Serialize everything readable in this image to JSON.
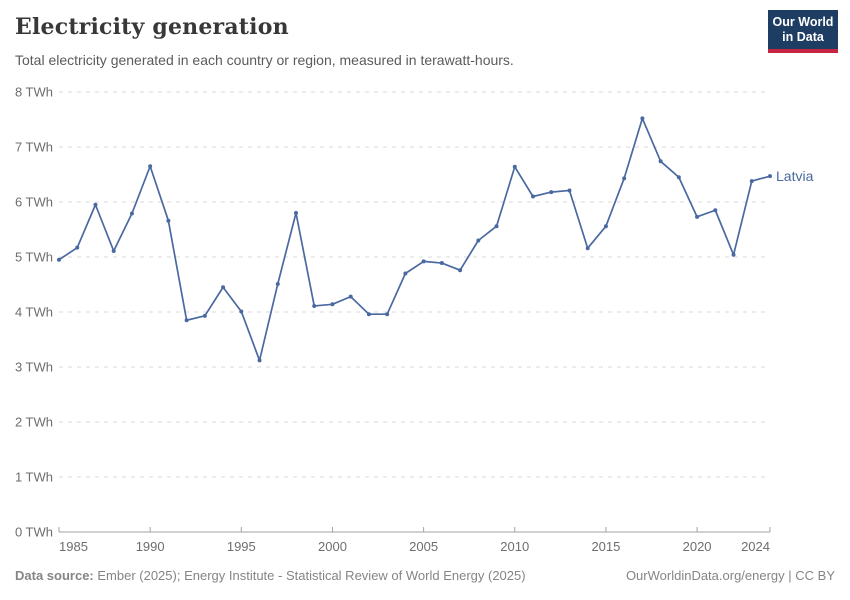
{
  "header": {
    "title": "Electricity generation",
    "subtitle": "Total electricity generated in each country or region, measured in terawatt-hours."
  },
  "logo": {
    "line1": "Our World",
    "line2": "in Data"
  },
  "colors": {
    "series_blue": "#4a69a0",
    "logo_bg": "#1d3d63",
    "logo_bar": "#c52443",
    "gridline": "#dadada",
    "axis": "#a3a3a3",
    "tick_text": "#6e6e6e",
    "footer_text": "#858585"
  },
  "chart_data": {
    "type": "line",
    "title": "Electricity generation",
    "ylabel": "",
    "xlabel": "",
    "unit": "TWh",
    "xlim": [
      1985,
      2024
    ],
    "ylim": [
      0,
      8
    ],
    "xticks": [
      1985,
      1990,
      1995,
      2000,
      2005,
      2010,
      2015,
      2020,
      2024
    ],
    "yticks": [
      0,
      1,
      2,
      3,
      4,
      5,
      6,
      7,
      8
    ],
    "ytick_suffix": " TWh",
    "grid": "horizontal-dashed",
    "legend_position": "end-of-line-label",
    "series": [
      {
        "name": "Latvia",
        "color": "#4a69a0",
        "x": [
          1985,
          1986,
          1987,
          1988,
          1989,
          1990,
          1991,
          1992,
          1993,
          1994,
          1995,
          1996,
          1997,
          1998,
          1999,
          2000,
          2001,
          2002,
          2003,
          2004,
          2005,
          2006,
          2007,
          2008,
          2009,
          2010,
          2011,
          2012,
          2013,
          2014,
          2015,
          2016,
          2017,
          2018,
          2019,
          2020,
          2021,
          2022,
          2023,
          2024
        ],
        "values": [
          4.95,
          5.17,
          5.95,
          5.11,
          5.79,
          6.65,
          5.66,
          3.85,
          3.93,
          4.45,
          4.01,
          3.12,
          4.51,
          5.8,
          4.11,
          4.14,
          4.28,
          3.96,
          3.96,
          4.7,
          4.92,
          4.89,
          4.76,
          5.3,
          5.56,
          6.64,
          6.1,
          6.18,
          6.21,
          5.16,
          5.56,
          6.43,
          7.52,
          6.74,
          6.45,
          5.73,
          5.85,
          5.04,
          6.38,
          6.47
        ]
      }
    ]
  },
  "footer": {
    "source_label": "Data source:",
    "source_text": " Ember (2025); Energy Institute - Statistical Review of World Energy (2025)",
    "link_text": "OurWorldinData.org/energy | CC BY"
  }
}
